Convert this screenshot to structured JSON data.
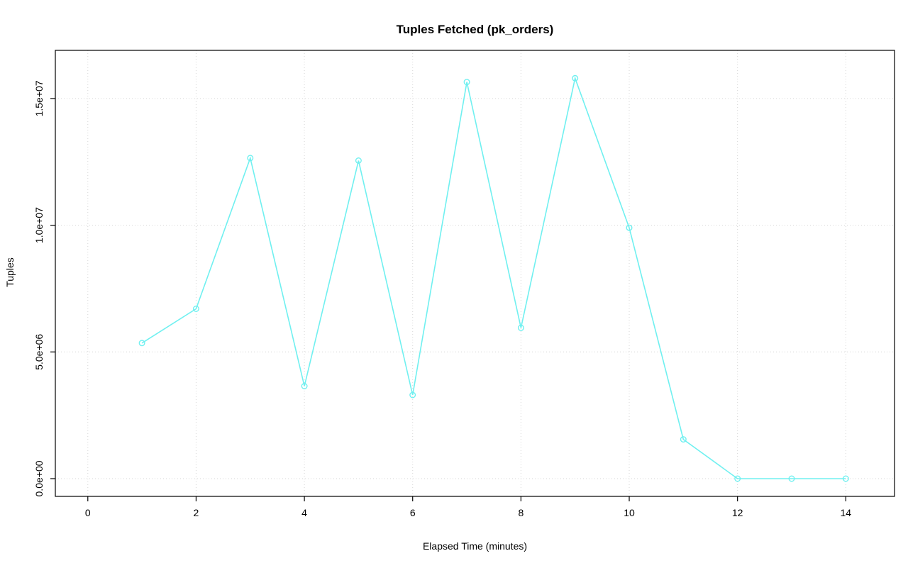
{
  "chart_data": {
    "type": "line",
    "title": "Tuples Fetched (pk_orders)",
    "xlabel": "Elapsed Time (minutes)",
    "ylabel": "Tuples",
    "x": [
      1,
      2,
      3,
      4,
      5,
      6,
      7,
      8,
      9,
      10,
      11,
      12,
      13,
      14
    ],
    "values": [
      5350000,
      6700000,
      12650000,
      3650000,
      12550000,
      3300000,
      15650000,
      5950000,
      15800000,
      9900000,
      1550000,
      0,
      0,
      0
    ],
    "x_ticks": [
      0,
      2,
      4,
      6,
      8,
      10,
      12,
      14
    ],
    "y_ticks": [
      0,
      5000000,
      10000000,
      15000000
    ],
    "y_tick_labels": [
      "0.0e+00",
      "5.0e+06",
      "1.0e+07",
      "1.5e+07"
    ],
    "xlim": [
      -0.6,
      14.9
    ],
    "ylim": [
      -700000,
      16900000
    ],
    "grid": true,
    "legend": "none",
    "line_color": "#70f0f0",
    "marker": "open-circle"
  }
}
